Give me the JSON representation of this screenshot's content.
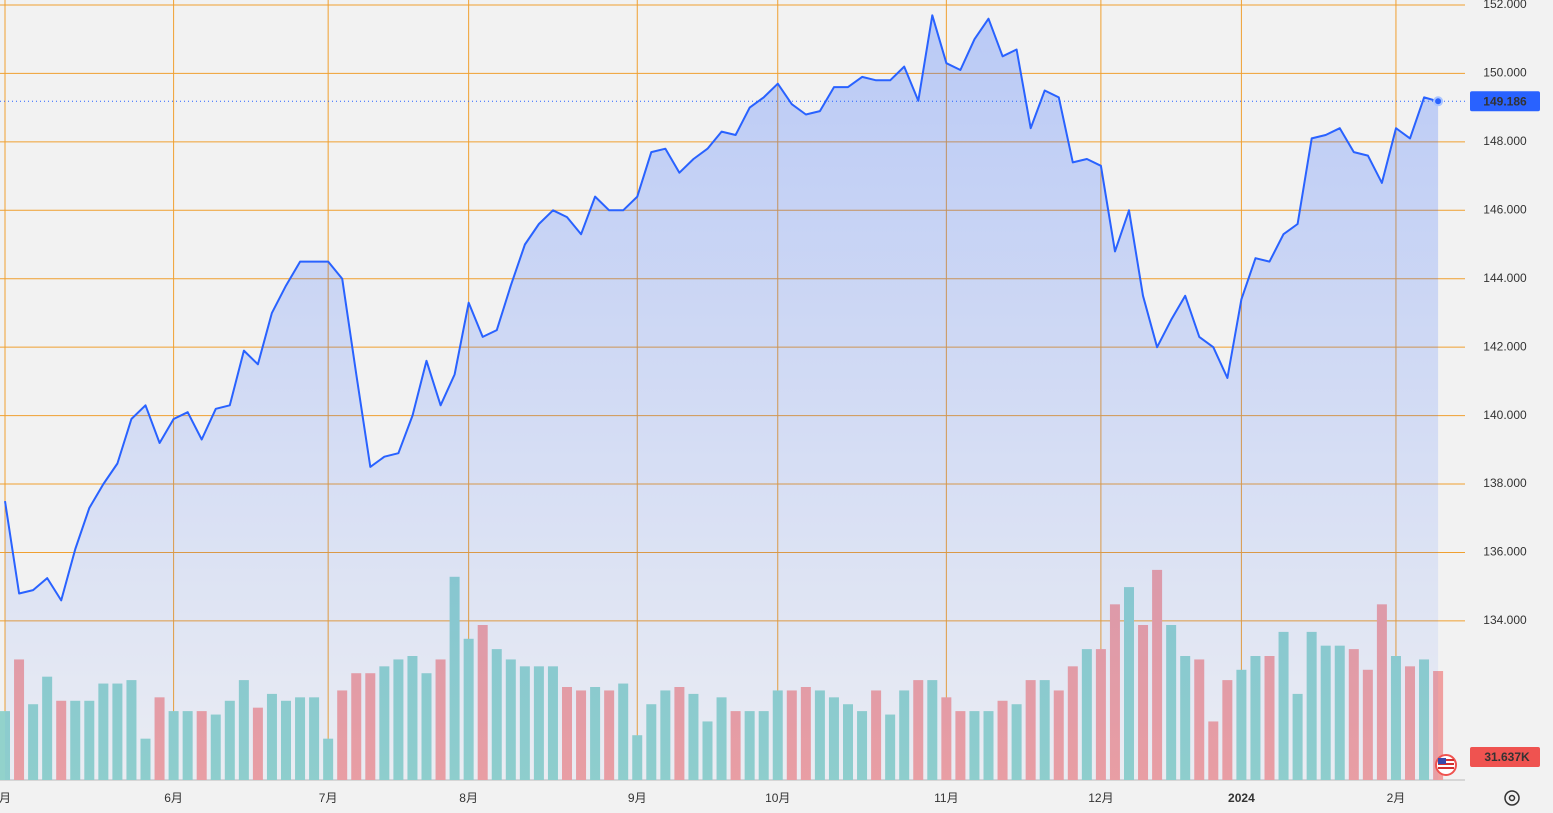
{
  "chart_data": {
    "type": "line",
    "categories": [
      "月",
      null,
      null,
      null,
      null,
      null,
      null,
      null,
      null,
      null,
      null,
      null,
      "6月",
      null,
      null,
      null,
      null,
      null,
      null,
      null,
      null,
      null,
      null,
      "7月",
      null,
      null,
      null,
      null,
      null,
      null,
      null,
      null,
      null,
      "8月",
      null,
      null,
      null,
      null,
      null,
      null,
      null,
      null,
      null,
      null,
      null,
      "9月",
      null,
      null,
      null,
      null,
      null,
      null,
      null,
      null,
      null,
      "10月",
      null,
      null,
      null,
      null,
      null,
      null,
      null,
      null,
      null,
      null,
      null,
      "11月",
      null,
      null,
      null,
      null,
      null,
      null,
      null,
      null,
      null,
      null,
      "12月",
      null,
      null,
      null,
      null,
      null,
      null,
      null,
      null,
      null,
      "2024",
      null,
      null,
      null,
      null,
      null,
      null,
      null,
      null,
      null,
      null,
      "2月",
      null,
      null,
      null
    ],
    "price": {
      "color": "#2962ff",
      "values": [
        137.5,
        134.8,
        134.9,
        135.25,
        134.6,
        136.1,
        137.3,
        138.0,
        138.6,
        139.9,
        140.3,
        139.2,
        139.9,
        140.1,
        139.3,
        140.2,
        140.3,
        141.9,
        141.5,
        143.0,
        143.8,
        144.5,
        144.5,
        144.5,
        144.0,
        141.2,
        138.5,
        138.8,
        138.9,
        140.0,
        141.6,
        140.3,
        141.2,
        143.3,
        142.3,
        142.5,
        143.8,
        145.0,
        145.6,
        146.0,
        145.8,
        145.3,
        146.4,
        146.0,
        146.0,
        146.4,
        147.7,
        147.8,
        147.1,
        147.5,
        147.8,
        148.3,
        148.2,
        149.0,
        149.3,
        149.7,
        149.1,
        148.8,
        148.9,
        149.6,
        149.6,
        149.9,
        149.8,
        149.8,
        150.2,
        149.2,
        151.7,
        150.3,
        150.1,
        151.0,
        151.6,
        150.5,
        150.7,
        148.4,
        149.5,
        149.3,
        147.4,
        147.5,
        147.3,
        144.8,
        146.0,
        143.5,
        142.0,
        142.8,
        143.5,
        142.3,
        142.0,
        141.1,
        143.4,
        144.6,
        144.5,
        145.3,
        145.6,
        148.1,
        148.2,
        148.4,
        147.7,
        147.6,
        146.8,
        148.4,
        148.1,
        149.3,
        149.186
      ]
    },
    "volume": {
      "up_color": "#92d2cb",
      "down_color": "#f0a0a0",
      "last_label": "31.637K",
      "values": [
        20,
        35,
        22,
        30,
        23,
        23,
        23,
        28,
        28,
        29,
        12,
        24,
        20,
        20,
        20,
        19,
        23,
        29,
        21,
        25,
        23,
        24,
        24,
        12,
        26,
        31,
        31,
        33,
        35,
        36,
        31,
        35,
        59,
        41,
        45,
        38,
        35,
        33,
        33,
        33,
        27,
        26,
        27,
        26,
        28,
        13,
        22,
        26,
        27,
        25,
        17,
        24,
        20,
        20,
        20,
        26,
        26,
        27,
        26,
        24,
        22,
        20,
        26,
        19,
        26,
        29,
        29,
        24,
        20,
        20,
        20,
        23,
        22,
        29,
        29,
        26,
        33,
        38,
        38,
        51,
        56,
        45,
        61,
        45,
        36,
        35,
        17,
        29,
        32,
        36,
        36,
        43,
        25,
        43,
        39,
        39,
        38,
        32,
        51,
        36,
        33,
        35,
        31.637
      ],
      "ylim": [
        0,
        225
      ]
    },
    "ylim": [
      129.35,
      152
    ],
    "yticks": [
      {
        "value": 134,
        "label": "134.000"
      },
      {
        "value": 136,
        "label": "136.000"
      },
      {
        "value": 138,
        "label": "138.000"
      },
      {
        "value": 140,
        "label": "140.000"
      },
      {
        "value": 142,
        "label": "142.000"
      },
      {
        "value": 144,
        "label": "144.000"
      },
      {
        "value": 146,
        "label": "146.000"
      },
      {
        "value": 148,
        "label": "148.000"
      },
      {
        "value": 150,
        "label": "150.000"
      },
      {
        "value": 152,
        "label": "152.000"
      }
    ],
    "grid": true,
    "grid_color": "#f0a030"
  }
}
